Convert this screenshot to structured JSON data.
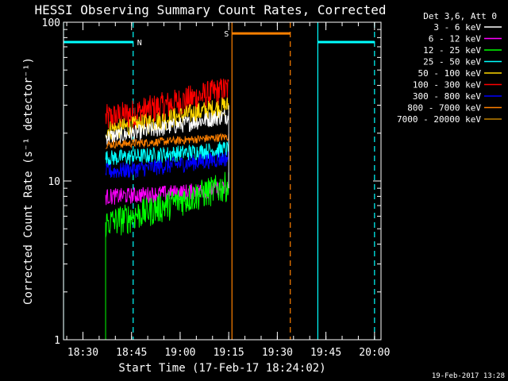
{
  "chart_data": {
    "type": "line",
    "title": "HESSI Observing Summary Count Rates, Corrected",
    "xlabel": "Start Time (17-Feb-17 18:24:02)",
    "ylabel": "Corrected Count Rate (s⁻¹ detector⁻¹)",
    "y_scale": "log",
    "ylim": [
      1,
      100
    ],
    "xlim_minutes_after_1824": [
      0,
      98
    ],
    "y_ticks": [
      {
        "value": 1,
        "label": "1"
      },
      {
        "value": 10,
        "label": "10"
      },
      {
        "value": 100,
        "label": "100"
      }
    ],
    "x_ticks": [
      {
        "minutes": 6,
        "label": "18:30"
      },
      {
        "minutes": 21,
        "label": "18:45"
      },
      {
        "minutes": 36,
        "label": "19:00"
      },
      {
        "minutes": 51,
        "label": "19:15"
      },
      {
        "minutes": 66,
        "label": "19:30"
      },
      {
        "minutes": 81,
        "label": "19:45"
      },
      {
        "minutes": 96,
        "label": "20:00"
      }
    ],
    "legend": {
      "title": "Det 3,6, Att 0",
      "position": "right",
      "entries": [
        {
          "name": "3 - 6 keV",
          "color": "#ffffff"
        },
        {
          "name": "6 - 12 keV",
          "color": "#ff00ff"
        },
        {
          "name": "12 - 25 keV",
          "color": "#00ff00"
        },
        {
          "name": "25 - 50 keV",
          "color": "#00ffff"
        },
        {
          "name": "50 - 100 keV",
          "color": "#ffd700"
        },
        {
          "name": "100 - 300 keV",
          "color": "#ff0000"
        },
        {
          "name": "300 - 800 keV",
          "color": "#0000ff"
        },
        {
          "name": "800 - 7000 keV",
          "color": "#ff8000"
        },
        {
          "name": "7000 - 20000 keV",
          "color": "#c08000"
        }
      ]
    },
    "data_window_minutes": [
      13,
      51
    ],
    "series": [
      {
        "name": "100 - 300 keV",
        "color": "#ff0000",
        "start": 25,
        "end": 38,
        "noise": 0.22
      },
      {
        "name": "50 - 100 keV",
        "color": "#ffd700",
        "start": 21,
        "end": 30,
        "noise": 0.15
      },
      {
        "name": "3 - 6 keV",
        "color": "#ffffff",
        "start": 19,
        "end": 26,
        "noise": 0.12
      },
      {
        "name": "800 - 7000 keV",
        "color": "#ff8000",
        "start": 17,
        "end": 19,
        "noise": 0.06
      },
      {
        "name": "25 - 50 keV",
        "color": "#00ffff",
        "start": 14,
        "end": 16,
        "noise": 0.12
      },
      {
        "name": "300 - 800 keV",
        "color": "#0000ff",
        "start": 11.5,
        "end": 14,
        "noise": 0.12
      },
      {
        "name": "6 - 12 keV",
        "color": "#ff00ff",
        "start": 8,
        "end": 9,
        "noise": 0.12
      },
      {
        "name": "12 - 25 keV",
        "color": "#00ff00",
        "start": 5.5,
        "end": 9.5,
        "noise": 0.22
      }
    ],
    "markers": [
      {
        "label": "N",
        "color": "#00ffff",
        "bar_start": 0,
        "bar_end": 21.5,
        "rate": 75,
        "lines": [
          {
            "minutes": 0,
            "style": "solid"
          },
          {
            "minutes": 21.5,
            "style": "dashed"
          }
        ]
      },
      {
        "label": "S",
        "color": "#ff8000",
        "bar_start": 52,
        "bar_end": 70,
        "rate": 85,
        "lines": [
          {
            "minutes": 52,
            "style": "solid"
          },
          {
            "minutes": 70,
            "style": "dashed"
          }
        ]
      },
      {
        "label": "",
        "color": "#00ffff",
        "bar_start": 78.5,
        "bar_end": 96,
        "rate": 75,
        "lines": [
          {
            "minutes": 78.5,
            "style": "solid"
          },
          {
            "minutes": 96,
            "style": "dashed"
          }
        ]
      }
    ]
  },
  "footer": {
    "date": "19-Feb-2017 13:28"
  }
}
